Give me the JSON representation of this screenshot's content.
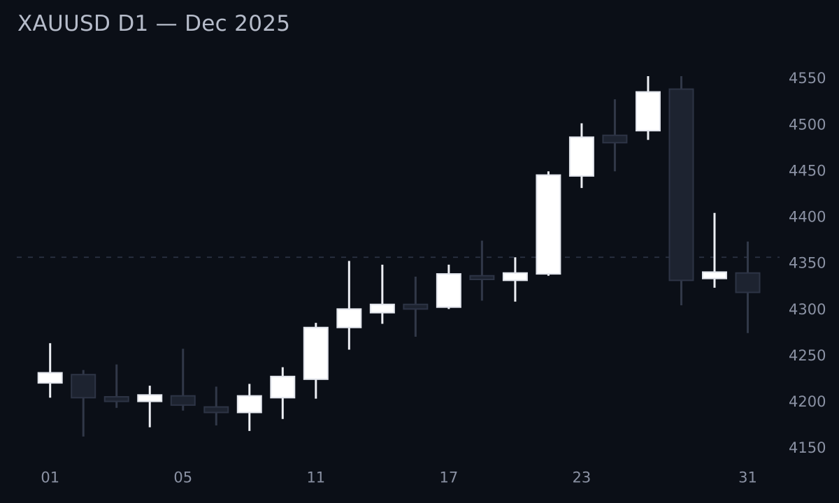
{
  "title": "XAUUSD D1 — Dec 2025",
  "colors": {
    "background": "#0b0f17",
    "title": "#b6bcca",
    "axis_label": "#8b92a4",
    "bull_body": "#ffffff",
    "bull_border": "#e2e5ec",
    "bull_wick": "#edeff4",
    "bear_body": "#1d2330",
    "bear_border": "#2d3445",
    "bear_wick": "#313848",
    "reference_line": "#2b3242"
  },
  "chart_data": {
    "type": "candlestick",
    "title": "XAUUSD D1 — Dec 2025",
    "symbol": "XAUUSD",
    "timeframe": "D1",
    "period": "Dec 2025",
    "legend": "none",
    "grid": "off",
    "y_axis": {
      "side": "right",
      "ticks": [
        4150,
        4200,
        4250,
        4300,
        4350,
        4400,
        4450,
        4500,
        4550
      ],
      "ylim": [
        4150,
        4550
      ]
    },
    "x_axis": {
      "ticks": [
        {
          "index": 0,
          "label": "01"
        },
        {
          "index": 4,
          "label": "05"
        },
        {
          "index": 8,
          "label": "11"
        },
        {
          "index": 12,
          "label": "17"
        },
        {
          "index": 16,
          "label": "23"
        },
        {
          "index": 21,
          "label": "31"
        }
      ]
    },
    "reference_line": {
      "price": 4356,
      "style": "dashed"
    },
    "candles": [
      {
        "date": "01",
        "open": 4220,
        "high": 4263,
        "low": 4204,
        "close": 4231,
        "direction": "bull"
      },
      {
        "date": "02",
        "open": 4229,
        "high": 4234,
        "low": 4162,
        "close": 4204,
        "direction": "bear"
      },
      {
        "date": "03",
        "open": 4205,
        "high": 4240,
        "low": 4193,
        "close": 4200,
        "direction": "bear"
      },
      {
        "date": "04",
        "open": 4200,
        "high": 4217,
        "low": 4172,
        "close": 4207,
        "direction": "bull"
      },
      {
        "date": "05",
        "open": 4206,
        "high": 4257,
        "low": 4190,
        "close": 4196,
        "direction": "bear"
      },
      {
        "date": "08",
        "open": 4194,
        "high": 4216,
        "low": 4174,
        "close": 4188,
        "direction": "bear"
      },
      {
        "date": "09",
        "open": 4188,
        "high": 4219,
        "low": 4168,
        "close": 4206,
        "direction": "bull"
      },
      {
        "date": "10",
        "open": 4204,
        "high": 4237,
        "low": 4181,
        "close": 4227,
        "direction": "bull"
      },
      {
        "date": "11",
        "open": 4224,
        "high": 4285,
        "low": 4203,
        "close": 4280,
        "direction": "bull"
      },
      {
        "date": "12",
        "open": 4280,
        "high": 4352,
        "low": 4256,
        "close": 4300,
        "direction": "bull"
      },
      {
        "date": "15",
        "open": 4296,
        "high": 4348,
        "low": 4284,
        "close": 4305,
        "direction": "bull"
      },
      {
        "date": "16",
        "open": 4305,
        "high": 4335,
        "low": 4270,
        "close": 4300,
        "direction": "bear"
      },
      {
        "date": "17",
        "open": 4302,
        "high": 4348,
        "low": 4300,
        "close": 4338,
        "direction": "bull"
      },
      {
        "date": "18",
        "open": 4336,
        "high": 4374,
        "low": 4309,
        "close": 4332,
        "direction": "bear"
      },
      {
        "date": "19",
        "open": 4331,
        "high": 4356,
        "low": 4308,
        "close": 4339,
        "direction": "bull"
      },
      {
        "date": "22",
        "open": 4338,
        "high": 4449,
        "low": 4336,
        "close": 4445,
        "direction": "bull"
      },
      {
        "date": "23",
        "open": 4444,
        "high": 4501,
        "low": 4431,
        "close": 4486,
        "direction": "bull"
      },
      {
        "date": "24",
        "open": 4488,
        "high": 4527,
        "low": 4449,
        "close": 4480,
        "direction": "bear"
      },
      {
        "date": "26",
        "open": 4493,
        "high": 4552,
        "low": 4483,
        "close": 4535,
        "direction": "bull"
      },
      {
        "date": "29",
        "open": 4538,
        "high": 4552,
        "low": 4304,
        "close": 4331,
        "direction": "bear"
      },
      {
        "date": "30",
        "open": 4333,
        "high": 4404,
        "low": 4323,
        "close": 4340,
        "direction": "bull"
      },
      {
        "date": "31",
        "open": 4339,
        "high": 4373,
        "low": 4274,
        "close": 4318,
        "direction": "bear"
      }
    ]
  }
}
